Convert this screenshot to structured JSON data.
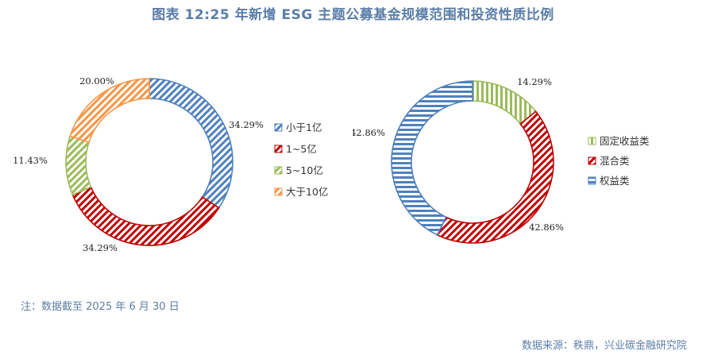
{
  "title": "图表 12:25 年新增 ESG 主题公募基金规模范围和投资性质比例",
  "note": "注：数据截至 2025 年 6 月 30 日",
  "source": "数据来源：秩鼎，兴业碳金融研究院",
  "colors": {
    "blue": "#4f81bd",
    "red": "#c00000",
    "green": "#9bbb59",
    "orange": "#f79646"
  },
  "chart_data": [
    {
      "type": "pie",
      "subtype": "donut",
      "categories": [
        "小于1亿",
        "1~5亿",
        "5~10亿",
        "大于10亿"
      ],
      "values": [
        34.29,
        34.29,
        11.43,
        20.0
      ],
      "labels": [
        "34.29%",
        "34.29%",
        "11.43%",
        "20.00%"
      ],
      "colors": [
        "#4f81bd",
        "#c00000",
        "#9bbb59",
        "#f79646"
      ],
      "pattern": "diagonal",
      "legend_position": "right"
    },
    {
      "type": "pie",
      "subtype": "donut",
      "categories": [
        "固定收益类",
        "混合类",
        "权益类"
      ],
      "values": [
        14.29,
        42.86,
        42.86
      ],
      "labels": [
        "14.29%",
        "42.86%",
        "42.86%"
      ],
      "colors": [
        "#9bbb59",
        "#c00000",
        "#4f81bd"
      ],
      "patterns": [
        "vertical",
        "diagonal",
        "horizontal"
      ],
      "legend_position": "right"
    }
  ]
}
